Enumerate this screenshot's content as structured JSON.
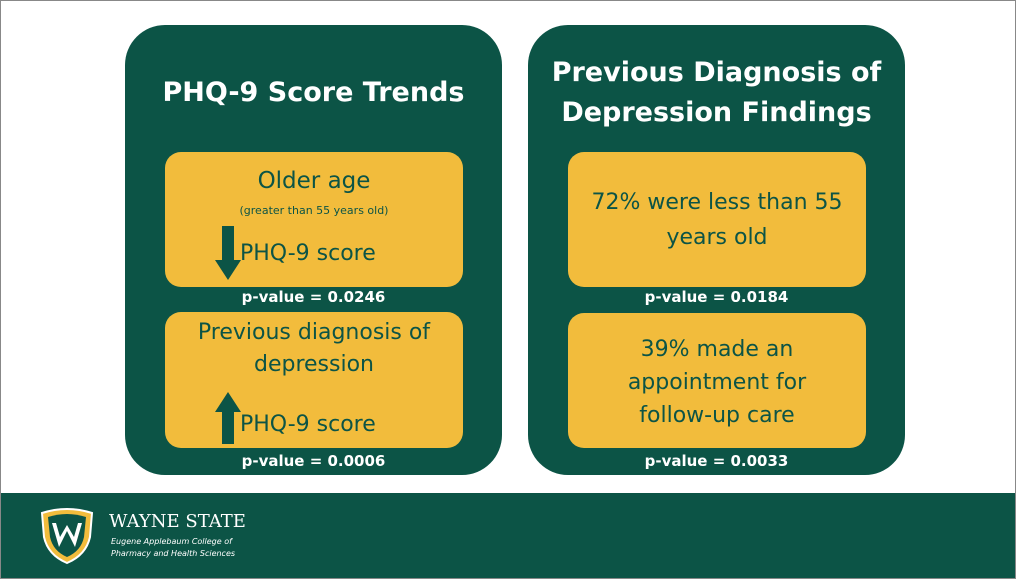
{
  "left_panel": {
    "title": "PHQ-9 Score Trends",
    "boxes": [
      {
        "lines": [
          "Older age"
        ],
        "note": "(greater than 55 years old)",
        "score": "PHQ-9 score",
        "p_value": "p-value = 0.0246"
      },
      {
        "lines": [
          "Previous diagnosis of",
          "depression"
        ],
        "score": "PHQ-9 score",
        "p_value": "p-value = 0.0006"
      }
    ]
  },
  "right_panel": {
    "title": [
      "Previous Diagnosis of",
      "Depression Findings"
    ],
    "boxes": [
      {
        "lines": [
          "72% were less than 55",
          "years old"
        ],
        "p_value": "p-value = 0.0184"
      },
      {
        "lines": [
          "39% made an",
          "appointment for",
          "follow-up care"
        ],
        "p_value": "p-value = 0.0033"
      }
    ]
  },
  "footer": {
    "name": "WAYNE STATE",
    "college": [
      "Eugene Applebaum College of",
      "Pharmacy and Health Sciences"
    ]
  }
}
